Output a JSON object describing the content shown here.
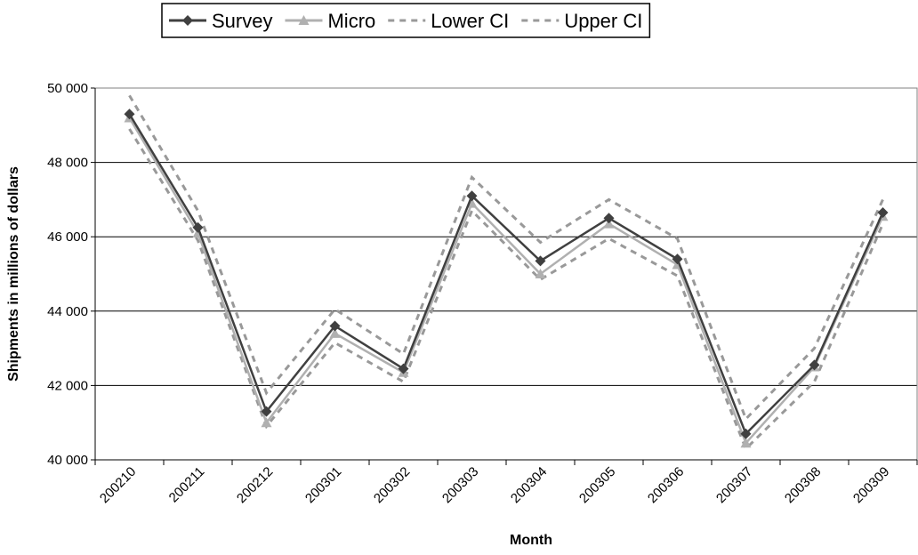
{
  "chart_data": {
    "type": "line",
    "x_label": "Month",
    "y_label": "Shipments in millions of dollars",
    "categories": [
      "200210",
      "200211",
      "200212",
      "200301",
      "200302",
      "200303",
      "200304",
      "200305",
      "200306",
      "200307",
      "200308",
      "200309"
    ],
    "series": [
      {
        "name": "Survey",
        "color": "#404040",
        "marker": "diamond",
        "style": "solid",
        "values": [
          49300,
          46250,
          41300,
          43600,
          42450,
          47100,
          45350,
          46500,
          45400,
          40700,
          42550,
          46650
        ]
      },
      {
        "name": "Micro",
        "color": "#b0b0b0",
        "marker": "triangle",
        "style": "solid",
        "values": [
          49200,
          46100,
          41000,
          43400,
          42350,
          46900,
          45000,
          46350,
          45250,
          40450,
          42500,
          46550
        ]
      },
      {
        "name": "Lower CI",
        "color": "#999999",
        "marker": null,
        "style": "dashed",
        "values": [
          48900,
          45900,
          40900,
          43150,
          42100,
          46700,
          44850,
          45950,
          44950,
          40300,
          42100,
          46350
        ]
      },
      {
        "name": "Upper CI",
        "color": "#999999",
        "marker": null,
        "style": "dashed",
        "values": [
          49800,
          46700,
          41800,
          44050,
          42850,
          47600,
          45850,
          47000,
          45950,
          41100,
          43000,
          47000
        ]
      }
    ],
    "ylim": [
      40000,
      50000
    ],
    "yticks": [
      {
        "value": 40000,
        "label": "40 000"
      },
      {
        "value": 42000,
        "label": "42 000"
      },
      {
        "value": 44000,
        "label": "44 000"
      },
      {
        "value": 46000,
        "label": "46 000"
      },
      {
        "value": 48000,
        "label": "48 000"
      },
      {
        "value": 50000,
        "label": "50 000"
      }
    ],
    "grid": true,
    "legend": "top"
  }
}
